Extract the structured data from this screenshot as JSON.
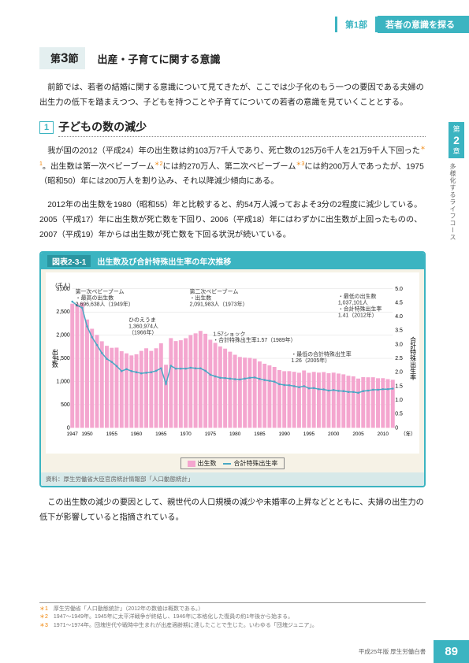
{
  "header": {
    "part": "第1部",
    "title": "若者の意識を探る"
  },
  "section": {
    "label": "第",
    "num": "3",
    "suffix": "節",
    "title": "出産・子育てに関する意識"
  },
  "intro": "前節では、若者の結婚に関する意識について見てきたが、ここでは少子化のもう一つの要因である夫婦の出生力の低下を踏まえつつ、子どもを持つことや子育てについての若者の意識を見ていくこととする。",
  "h1": {
    "num": "1",
    "text": "子どもの数の減少"
  },
  "p1a": "我が国の2012（平成24）年の出生数は約103万7千人であり、死亡数の125万6千人を21万9千人下回った",
  "p1b": "。出生数は第一次ベビーブーム",
  "p1c": "には約270万人、第二次ベビーブーム",
  "p1d": "には約200万人であったが、1975（昭和50）年には200万人を割り込み、それ以降減少傾向にある。",
  "p2": "2012年の出生数を1980（昭和55）年と比較すると、約54万人減っておよそ3分の2程度に減少している。2005（平成17）年に出生数が死亡数を下回り、2006（平成18）年にはわずかに出生数が上回ったものの、2007（平成19）年からは出生数が死亡数を下回る状況が続いている。",
  "chart": {
    "head_num": "図表2-3-1",
    "head_title": "出生数及び合計特殊出生率の年次推移",
    "y1_label": "出生数",
    "y1_unit": "（千人）",
    "y2_label": "合計特殊出生率",
    "y1_max": 3000,
    "y1_ticks": [
      500,
      1000,
      1500,
      2000,
      2500,
      3000
    ],
    "y2_max": 5.0,
    "y2_ticks": [
      0.5,
      1.0,
      1.5,
      2.0,
      2.5,
      3.0,
      3.5,
      4.0,
      4.5,
      5.0
    ],
    "x_start": 1947,
    "x_end": 2012,
    "x_label": "（年）",
    "x_ticks": [
      1947,
      1950,
      1955,
      1960,
      1965,
      1970,
      1975,
      1980,
      1985,
      1990,
      1995,
      2000,
      2005,
      2010
    ],
    "bar_color": "#f4a6cf",
    "line_color": "#4aa8c4",
    "births": [
      2679,
      2682,
      2697,
      2338,
      2138,
      2005,
      1868,
      1770,
      1727,
      1731,
      1653,
      1607,
      1563,
      1587,
      1660,
      1717,
      1660,
      1717,
      1824,
      1361,
      1936,
      1872,
      1890,
      1934,
      2001,
      2039,
      2092,
      2030,
      1901,
      1833,
      1755,
      1709,
      1643,
      1577,
      1529,
      1515,
      1509,
      1490,
      1432,
      1383,
      1347,
      1314,
      1247,
      1222,
      1223,
      1209,
      1188,
      1238,
      1187,
      1207,
      1192,
      1203,
      1178,
      1191,
      1171,
      1154,
      1124,
      1111,
      1063,
      1093,
      1090,
      1091,
      1070,
      1071,
      1051,
      1037
    ],
    "tfr": [
      4.54,
      4.4,
      4.32,
      3.65,
      3.26,
      2.98,
      2.69,
      2.48,
      2.37,
      2.22,
      2.04,
      2.11,
      2.04,
      2.0,
      1.96,
      1.98,
      2.0,
      2.05,
      2.14,
      1.58,
      2.23,
      2.13,
      2.13,
      2.13,
      2.16,
      2.14,
      2.14,
      2.05,
      1.91,
      1.85,
      1.8,
      1.79,
      1.77,
      1.75,
      1.74,
      1.77,
      1.8,
      1.81,
      1.76,
      1.72,
      1.69,
      1.66,
      1.57,
      1.54,
      1.53,
      1.5,
      1.46,
      1.5,
      1.42,
      1.43,
      1.39,
      1.38,
      1.34,
      1.36,
      1.33,
      1.32,
      1.29,
      1.29,
      1.26,
      1.32,
      1.34,
      1.37,
      1.37,
      1.39,
      1.39,
      1.41
    ],
    "annotations": {
      "a1": "第一次ベビーブーム\n・最高の出生数\n 2,696,638人（1949年）",
      "a2": "ひのえうま\n1,360,974人\n（1966年）",
      "a3": "第二次ベビーブーム\n・出生数\n 2,091,983人（1973年）",
      "a4": "1.57ショック\n・合計特殊出生率1.57（1989年）",
      "a5": "・最低の出生数\n 1,037,101人\n・合計特殊出生率\n 1.41（2012年）",
      "a6": "・最低の合計特殊出生率\n 1.26（2005年）"
    },
    "legend": {
      "bars": "出生数",
      "line": "合計特殊出生率"
    },
    "source": "資料：厚生労働省大臣官房統計情報部「人口動態統計」"
  },
  "p3": "この出生数の減少の要因として、親世代の人口規模の減少や未婚率の上昇などとともに、夫婦の出生力の低下が影響していると指摘されている。",
  "footnotes": {
    "f1": "厚生労働省「人口動態統計」（2012年の数値は概数である。）",
    "f2": "1947～1949年。1945年に太平洋戦争が終結し、1946年に本格化した復員の約1年後から始まる。",
    "f3": "1971～1974年。団塊世代や戦時中生まれが出産適齢期に達したことで生じた。いわゆる「団塊ジュニア」。"
  },
  "side": {
    "chap_pre": "第",
    "chap_n": "2",
    "chap_suf": "章",
    "subtitle": "多様化するライフコース"
  },
  "footer": {
    "edition": "平成25年版 厚生労働白書",
    "page": "89"
  }
}
